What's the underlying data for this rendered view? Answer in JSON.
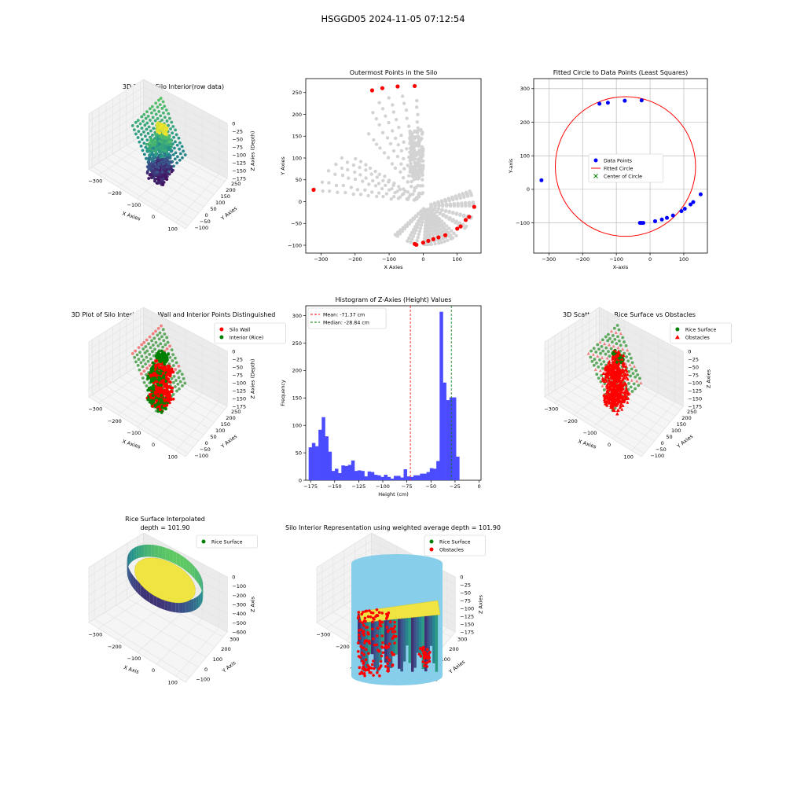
{
  "figure": {
    "title": "HSGGD05 2024-11-05 07:12:54"
  },
  "colors": {
    "light_gray": "#d3d3d3",
    "red": "#ff0000",
    "blue": "#0000ff",
    "green": "#008000",
    "hist_blue": "#4b4bff",
    "sky": "#87ceeb",
    "yellow": "#f0e442",
    "viridis_dark": "#440154",
    "viridis_mid": "#21918c",
    "viridis_light": "#5ec962"
  },
  "chart_data": [
    {
      "id": "p1",
      "type": "scatter3d",
      "title": "3D Plot of Silo Interior(row data)",
      "xlabel": "X Axies",
      "ylabel": "Y Axies",
      "zlabel": "Z Axies (Depth)",
      "xticks": [
        "-300",
        "-200",
        "-100",
        "0",
        "100"
      ],
      "yticks": [
        "-100",
        "-50",
        "0",
        "50",
        "100",
        "150",
        "200",
        "250"
      ],
      "zticks": [
        "0",
        "-25",
        "-50",
        "-75",
        "-100",
        "-125",
        "-150",
        "-175"
      ],
      "xlim": [
        -330,
        160
      ],
      "ylim": [
        -110,
        280
      ],
      "zlim": [
        -180,
        0
      ],
      "colormap": "viridis",
      "legend": []
    },
    {
      "id": "p2",
      "type": "scatter",
      "title": "Outermost Points in the Silo",
      "xlabel": "X Axies",
      "ylabel": "Y Axies",
      "xlim": [
        -345,
        170
      ],
      "ylim": [
        -118,
        282
      ],
      "xticks": [
        -300,
        -200,
        -100,
        0,
        100
      ],
      "yticks": [
        -100,
        -50,
        0,
        50,
        100,
        150,
        200,
        250
      ],
      "outer_points": [
        [
          -322,
          27
        ],
        [
          -150,
          255
        ],
        [
          -120,
          260
        ],
        [
          -75,
          264
        ],
        [
          -25,
          265
        ],
        [
          -25,
          -97
        ],
        [
          -20,
          -99
        ],
        [
          0,
          -94
        ],
        [
          15,
          -90
        ],
        [
          30,
          -86
        ],
        [
          45,
          -82
        ],
        [
          65,
          -77
        ],
        [
          100,
          -62
        ],
        [
          110,
          -57
        ],
        [
          125,
          -42
        ],
        [
          135,
          -35
        ],
        [
          150,
          -12
        ]
      ],
      "legend": []
    },
    {
      "id": "p3",
      "type": "scatter",
      "title": "Fitted Circle to Data Points (Least Squares)",
      "xlabel": "X-axis",
      "ylabel": "Y-axis",
      "xlim": [
        -345,
        170
      ],
      "ylim": [
        -190,
        330
      ],
      "xticks": [
        -300,
        -200,
        -100,
        0,
        100
      ],
      "yticks": [
        -100,
        0,
        100,
        200,
        300
      ],
      "grid": true,
      "data_points": [
        [
          -322,
          27
        ],
        [
          -150,
          255
        ],
        [
          -125,
          258
        ],
        [
          -75,
          264
        ],
        [
          -25,
          265
        ],
        [
          -30,
          -100
        ],
        [
          -25,
          -100
        ],
        [
          -20,
          -100
        ],
        [
          15,
          -95
        ],
        [
          35,
          -90
        ],
        [
          50,
          -85
        ],
        [
          68,
          -78
        ],
        [
          93,
          -65
        ],
        [
          103,
          -58
        ],
        [
          120,
          -45
        ],
        [
          128,
          -38
        ],
        [
          150,
          -15
        ]
      ],
      "circle": {
        "cx": -73,
        "cy": 68,
        "r": 208
      },
      "center": {
        "x": -73,
        "y": 68
      },
      "legend_items": [
        "Data Points",
        "Fitted Circle",
        "Center of Circle"
      ],
      "legend_position": "center"
    },
    {
      "id": "p4",
      "type": "scatter3d",
      "title": "3D Plot of Silo Interior with Wall and Interior Points Distinguished",
      "xlabel": "X Axies",
      "ylabel": "Y Axies",
      "zlabel": "Z Axies (Depth)",
      "xticks": [
        "-300",
        "-200",
        "-100",
        "0",
        "100"
      ],
      "yticks": [
        "-100",
        "-50",
        "0",
        "50",
        "100",
        "150",
        "200",
        "250"
      ],
      "zticks": [
        "0",
        "-25",
        "-50",
        "-75",
        "-100",
        "-125",
        "-150",
        "-175"
      ],
      "xlim": [
        -330,
        160
      ],
      "ylim": [
        -110,
        280
      ],
      "zlim": [
        -180,
        0
      ],
      "legend_items": [
        "Silo Wall",
        "Interior (Rice)"
      ],
      "legend_position": "top-right"
    },
    {
      "id": "p5",
      "type": "histogram",
      "title": "Histogram of Z-Axies (Height) Values",
      "xlabel": "Height (cm)",
      "ylabel": "Frequency",
      "xlim": [
        -180,
        2
      ],
      "ylim": [
        0,
        318
      ],
      "xticks": [
        -175,
        -150,
        -125,
        -100,
        -75,
        -50,
        -25,
        0
      ],
      "yticks": [
        0,
        50,
        100,
        150,
        200,
        250,
        300
      ],
      "bin_start": -177,
      "bin_width": 3.4,
      "counts": [
        60,
        68,
        62,
        92,
        115,
        80,
        52,
        17,
        21,
        13,
        27,
        26,
        28,
        36,
        17,
        18,
        17,
        7,
        16,
        15,
        10,
        9,
        6,
        10,
        6,
        3,
        8,
        8,
        5,
        20,
        7,
        6,
        9,
        9,
        12,
        12,
        15,
        22,
        21,
        35,
        307,
        178,
        146,
        151,
        151,
        43
      ],
      "mean": -71.37,
      "median": -28.84,
      "legend_items": [
        "Mean: -71.37 cm",
        "Median: -28.84 cm"
      ],
      "legend_position": "top-left"
    },
    {
      "id": "p6",
      "type": "scatter3d",
      "title": "3D Scatter Plot: Rice Surface vs Obstacles",
      "xlabel": "X Axies",
      "ylabel": "Y Axies",
      "zlabel": "Z Axies",
      "xticks": [
        "-300",
        "-200",
        "-100",
        "0",
        "100"
      ],
      "yticks": [
        "-100",
        "-50",
        "0",
        "50",
        "100",
        "150",
        "200",
        "250"
      ],
      "zticks": [
        "0",
        "-25",
        "-50",
        "-75",
        "-100",
        "-125",
        "-150",
        "-175"
      ],
      "xlim": [
        -330,
        160
      ],
      "ylim": [
        -110,
        280
      ],
      "zlim": [
        -180,
        0
      ],
      "legend_items": [
        "Rice Surface",
        "Obstacles"
      ],
      "legend_position": "top-right"
    },
    {
      "id": "p7",
      "type": "surface3d",
      "title": "Rice Surface Interpolated\ndepth = 101.90",
      "xlabel": "X Axis",
      "ylabel": "Y Axis",
      "zlabel": "Z Axis",
      "xticks": [
        "-300",
        "-200",
        "-100",
        "0",
        "100"
      ],
      "yticks": [
        "-100",
        "0",
        "100",
        "200",
        "300"
      ],
      "zticks": [
        "0",
        "-100",
        "-200",
        "-300",
        "-400",
        "-500",
        "-600"
      ],
      "xlim": [
        -330,
        160
      ],
      "ylim": [
        -110,
        310
      ],
      "zlim": [
        -600,
        0
      ],
      "legend_items": [
        "Rice Surface"
      ],
      "legend_position": "top-right"
    },
    {
      "id": "p8",
      "type": "surface3d",
      "title": "Silo Interior Representation using weighted average depth = 101.90",
      "xlabel": "X Axies",
      "ylabel": "Y Axies",
      "zlabel": "Z Axies",
      "xticks": [
        "-300",
        "-200",
        "-100",
        "0",
        "100"
      ],
      "yticks": [
        "-100",
        "0",
        "100",
        "200",
        "300"
      ],
      "zticks": [
        "0",
        "-25",
        "-50",
        "-75",
        "-100",
        "-125",
        "-150",
        "-175"
      ],
      "xlim": [
        -330,
        160
      ],
      "ylim": [
        -110,
        310
      ],
      "zlim": [
        -180,
        0
      ],
      "legend_items": [
        "Rice Surface",
        "Obstacles"
      ],
      "legend_position": "top-center"
    }
  ]
}
